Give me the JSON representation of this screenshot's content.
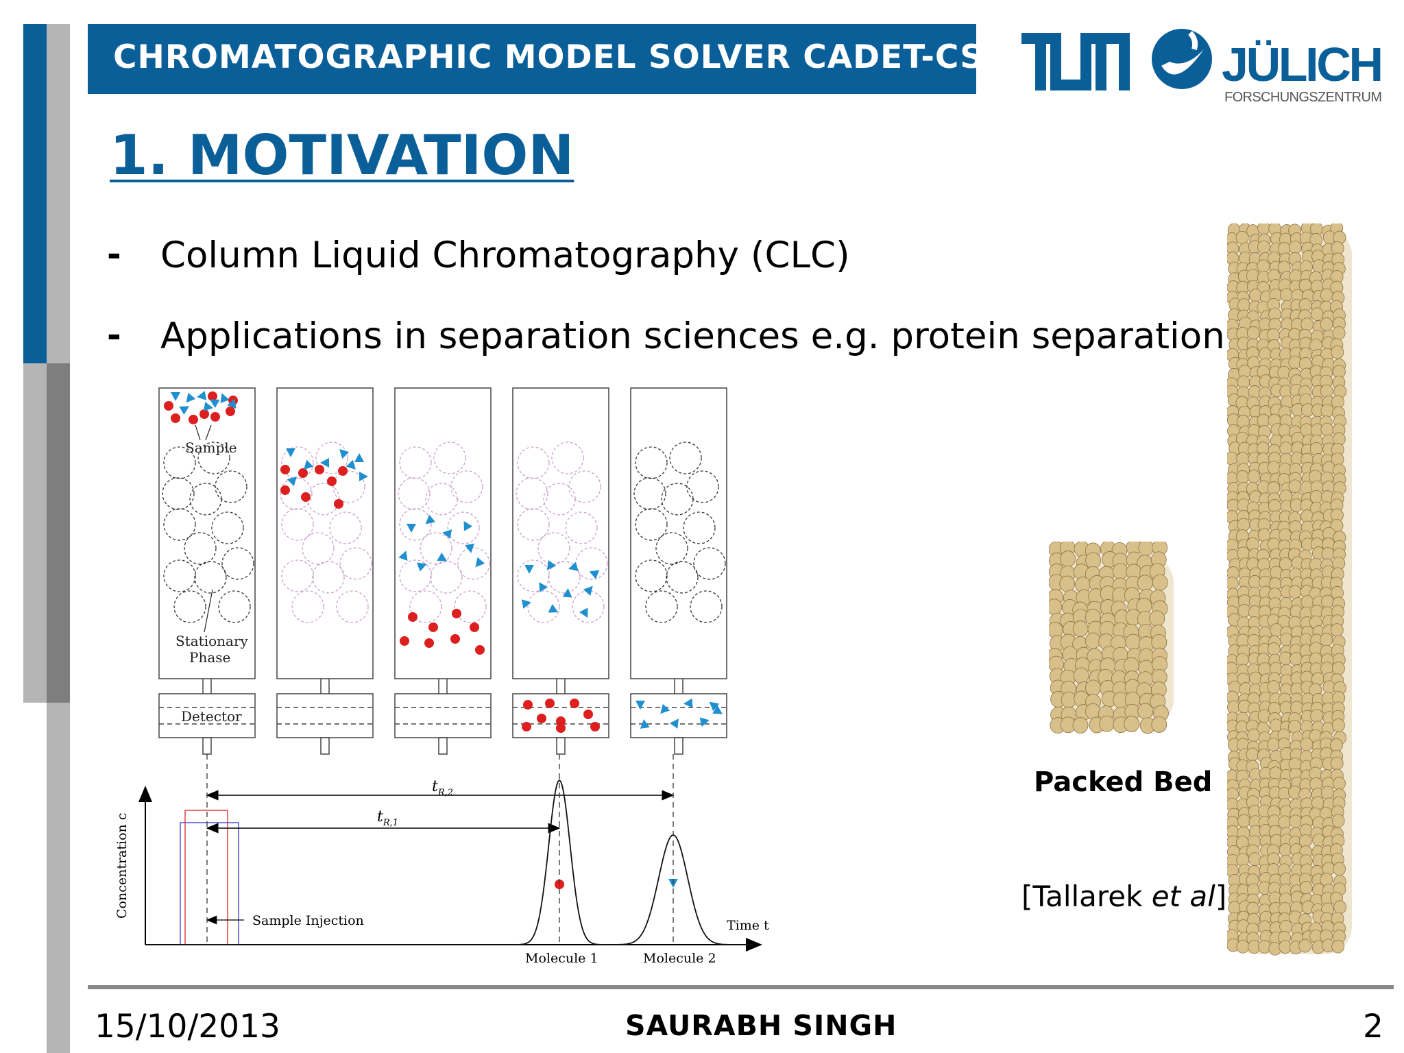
{
  "header": {
    "title": "CHROMATOGRAPHIC MODEL SOLVER CADET-CS"
  },
  "logos": {
    "tum": "TUM",
    "julich": "JÜLICH",
    "julich_sub": "FORSCHUNGSZENTRUM"
  },
  "heading": "1. MOTIVATION",
  "bullets": [
    {
      "marker": "-",
      "text": "Column Liquid Chromatography (CLC)"
    },
    {
      "marker": "-",
      "text": "Applications in separation sciences e.g. protein separation"
    }
  ],
  "figure": {
    "labels": {
      "sample": "Sample",
      "stationary_phase_1": "Stationary",
      "stationary_phase_2": "Phase",
      "detector": "Detector",
      "tr2": "t",
      "tr2_sub": "R,2",
      "tr1": "t",
      "tr1_sub": "R,1",
      "y_axis": "Concentration c",
      "x_axis": "Time t",
      "injection": "Sample Injection",
      "molecule1": "Molecule 1",
      "molecule2": "Molecule 2"
    },
    "colors": {
      "molecule1": "#dd1f1f",
      "molecule2": "#1f8fd0",
      "bead": "#d9c08a"
    }
  },
  "packed_bed": {
    "label": "Packed Bed",
    "citation_prefix": "[Tallarek ",
    "citation_italic": "et al",
    "citation_suffix": "]"
  },
  "footer": {
    "date": "15/10/2013",
    "author": "SAURABH SINGH",
    "page": "2"
  }
}
